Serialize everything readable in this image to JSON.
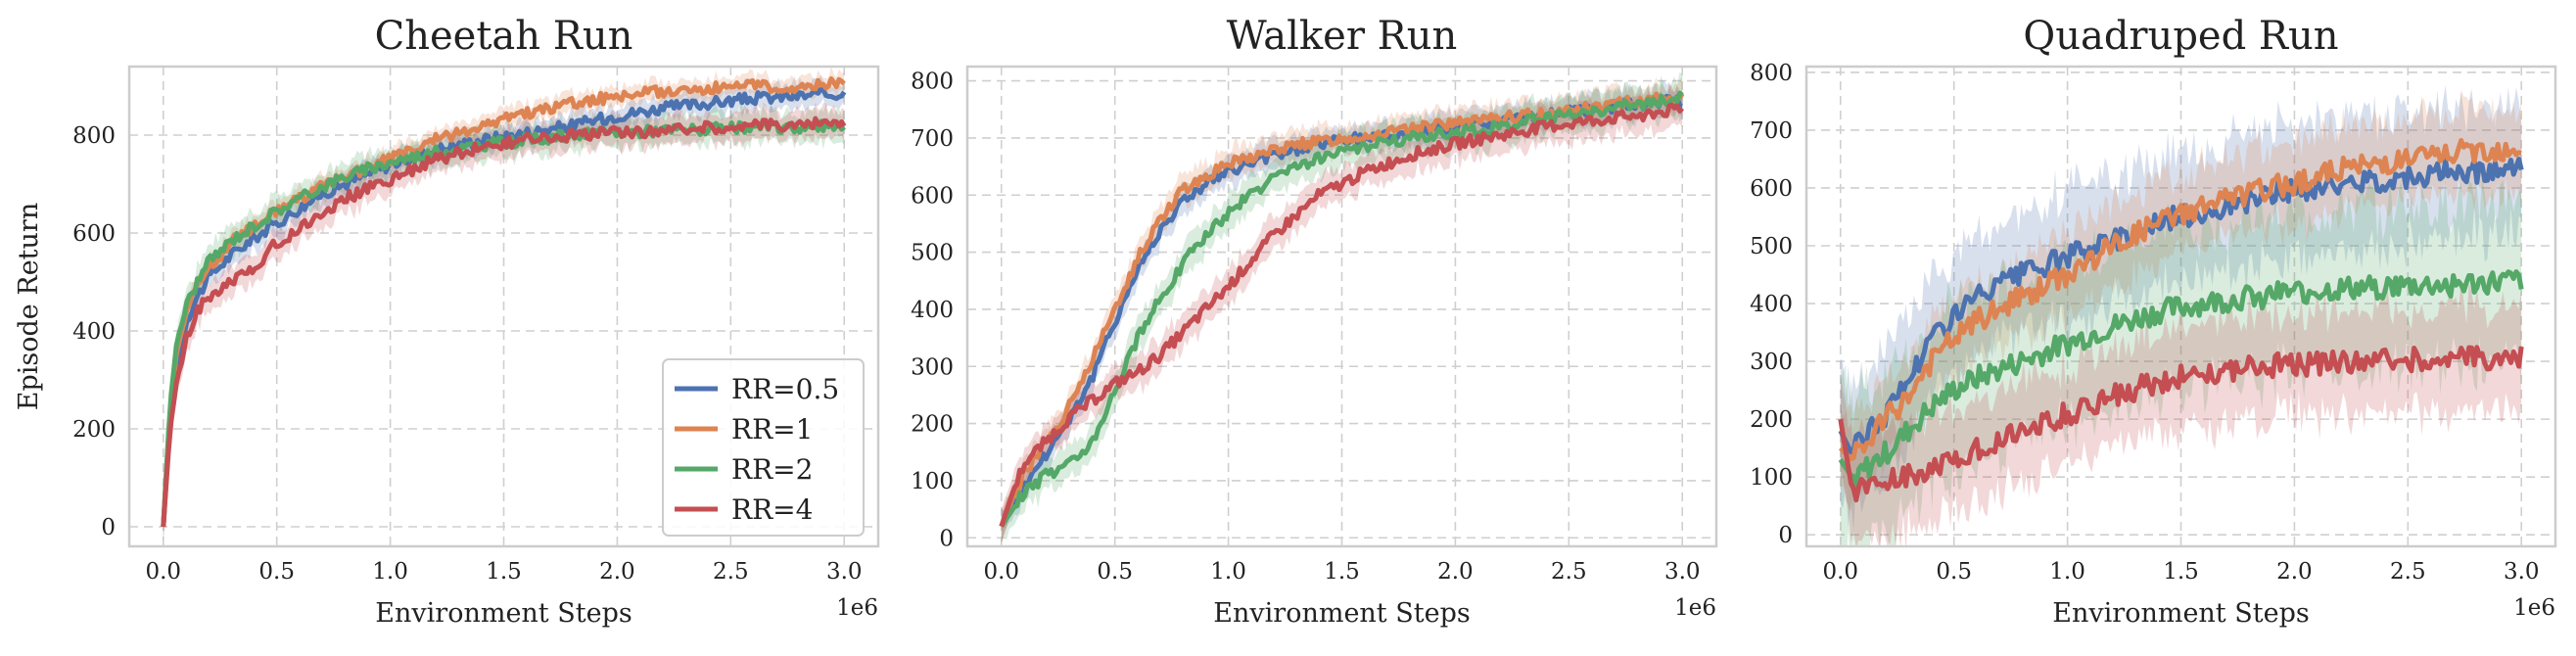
{
  "chart_data": [
    {
      "type": "line",
      "title": "Cheetah Run",
      "xlabel": "Environment Steps",
      "ylabel": "Episode Return",
      "x_multiplier": "1e6",
      "xlim": [
        -0.15,
        3.15
      ],
      "ylim": [
        -40,
        940
      ],
      "xticks": [
        "0.0",
        "0.5",
        "1.0",
        "1.5",
        "2.0",
        "2.5",
        "3.0"
      ],
      "yticks": [
        "0",
        "200",
        "400",
        "600",
        "800"
      ],
      "grid": true,
      "legend": "lower-right",
      "series": [
        {
          "name": "RR=0.5",
          "color": "#4c72b0",
          "x": [
            0,
            0.03,
            0.06,
            0.1,
            0.15,
            0.2,
            0.3,
            0.4,
            0.5,
            0.6,
            0.7,
            0.8,
            0.9,
            1.0,
            1.2,
            1.4,
            1.6,
            1.8,
            2.0,
            2.2,
            2.4,
            2.6,
            2.8,
            3.0
          ],
          "y": [
            0,
            220,
            330,
            420,
            470,
            510,
            555,
            590,
            620,
            650,
            680,
            700,
            720,
            740,
            770,
            790,
            805,
            820,
            840,
            855,
            865,
            875,
            880,
            885
          ],
          "band": 25
        },
        {
          "name": "RR=1",
          "color": "#dd8452",
          "x": [
            0,
            0.03,
            0.06,
            0.1,
            0.15,
            0.2,
            0.3,
            0.4,
            0.5,
            0.6,
            0.7,
            0.8,
            0.9,
            1.0,
            1.2,
            1.4,
            1.6,
            1.8,
            2.0,
            2.2,
            2.4,
            2.6,
            2.8,
            3.0
          ],
          "y": [
            0,
            240,
            360,
            440,
            490,
            530,
            580,
            615,
            645,
            670,
            695,
            715,
            735,
            750,
            790,
            820,
            845,
            865,
            880,
            890,
            895,
            900,
            900,
            905
          ],
          "band": 20
        },
        {
          "name": "RR=2",
          "color": "#55a868",
          "x": [
            0,
            0.03,
            0.06,
            0.1,
            0.15,
            0.2,
            0.3,
            0.4,
            0.5,
            0.6,
            0.7,
            0.8,
            0.9,
            1.0,
            1.2,
            1.4,
            1.6,
            1.8,
            2.0,
            2.2,
            2.4,
            2.6,
            2.8,
            3.0
          ],
          "y": [
            0,
            250,
            380,
            450,
            500,
            540,
            585,
            615,
            645,
            670,
            695,
            715,
            730,
            745,
            765,
            780,
            790,
            800,
            805,
            810,
            812,
            815,
            815,
            820
          ],
          "band": 30
        },
        {
          "name": "RR=4",
          "color": "#c44e52",
          "x": [
            0,
            0.03,
            0.06,
            0.1,
            0.15,
            0.2,
            0.3,
            0.4,
            0.5,
            0.6,
            0.7,
            0.8,
            0.9,
            1.0,
            1.2,
            1.4,
            1.6,
            1.8,
            2.0,
            2.2,
            2.4,
            2.6,
            2.8,
            3.0
          ],
          "y": [
            0,
            200,
            300,
            380,
            440,
            470,
            500,
            530,
            580,
            610,
            640,
            670,
            690,
            710,
            750,
            775,
            790,
            800,
            805,
            810,
            815,
            820,
            822,
            825
          ],
          "band": 30
        }
      ]
    },
    {
      "type": "line",
      "title": "Walker Run",
      "xlabel": "Environment Steps",
      "ylabel": "",
      "x_multiplier": "1e6",
      "xlim": [
        -0.15,
        3.15
      ],
      "ylim": [
        -15,
        825
      ],
      "xticks": [
        "0.0",
        "0.5",
        "1.0",
        "1.5",
        "2.0",
        "2.5",
        "3.0"
      ],
      "yticks": [
        "0",
        "100",
        "200",
        "300",
        "400",
        "500",
        "600",
        "700",
        "800"
      ],
      "grid": true,
      "legend": "none",
      "series": [
        {
          "name": "RR=0.5",
          "color": "#4c72b0",
          "x": [
            0,
            0.05,
            0.1,
            0.2,
            0.3,
            0.4,
            0.5,
            0.6,
            0.7,
            0.8,
            0.9,
            1.0,
            1.2,
            1.4,
            1.6,
            1.8,
            2.0,
            2.2,
            2.4,
            2.6,
            2.8,
            3.0
          ],
          "y": [
            20,
            60,
            90,
            150,
            210,
            280,
            380,
            470,
            540,
            590,
            620,
            640,
            670,
            690,
            700,
            710,
            720,
            730,
            740,
            750,
            760,
            765
          ],
          "band": 25
        },
        {
          "name": "RR=1",
          "color": "#dd8452",
          "x": [
            0,
            0.05,
            0.1,
            0.2,
            0.3,
            0.4,
            0.5,
            0.6,
            0.7,
            0.8,
            0.9,
            1.0,
            1.2,
            1.4,
            1.6,
            1.8,
            2.0,
            2.2,
            2.4,
            2.6,
            2.8,
            3.0
          ],
          "y": [
            20,
            70,
            110,
            170,
            230,
            310,
            400,
            490,
            560,
            610,
            635,
            655,
            680,
            695,
            705,
            715,
            725,
            735,
            745,
            755,
            765,
            770
          ],
          "band": 25
        },
        {
          "name": "RR=2",
          "color": "#55a868",
          "x": [
            0,
            0.05,
            0.1,
            0.2,
            0.3,
            0.4,
            0.5,
            0.6,
            0.7,
            0.8,
            0.9,
            1.0,
            1.2,
            1.4,
            1.6,
            1.8,
            2.0,
            2.2,
            2.4,
            2.6,
            2.8,
            3.0
          ],
          "y": [
            20,
            50,
            80,
            110,
            130,
            170,
            260,
            350,
            420,
            480,
            530,
            570,
            630,
            665,
            685,
            700,
            710,
            720,
            735,
            745,
            760,
            770
          ],
          "band": 30
        },
        {
          "name": "RR=4",
          "color": "#c44e52",
          "x": [
            0,
            0.05,
            0.1,
            0.2,
            0.3,
            0.4,
            0.5,
            0.6,
            0.7,
            0.8,
            0.9,
            1.0,
            1.2,
            1.4,
            1.6,
            1.8,
            2.0,
            2.2,
            2.4,
            2.6,
            2.8,
            3.0
          ],
          "y": [
            20,
            80,
            130,
            170,
            210,
            240,
            270,
            290,
            320,
            360,
            400,
            440,
            530,
            600,
            640,
            670,
            690,
            705,
            720,
            730,
            740,
            750
          ],
          "band": 30
        }
      ]
    },
    {
      "type": "line",
      "title": "Quadruped Run",
      "xlabel": "Environment Steps",
      "ylabel": "",
      "x_multiplier": "1e6",
      "xlim": [
        -0.15,
        3.15
      ],
      "ylim": [
        -20,
        810
      ],
      "xticks": [
        "0.0",
        "0.5",
        "1.0",
        "1.5",
        "2.0",
        "2.5",
        "3.0"
      ],
      "yticks": [
        "0",
        "100",
        "200",
        "300",
        "400",
        "500",
        "600",
        "700",
        "800"
      ],
      "grid": true,
      "legend": "none",
      "series": [
        {
          "name": "RR=0.5",
          "color": "#4c72b0",
          "x": [
            0,
            0.05,
            0.1,
            0.2,
            0.3,
            0.4,
            0.5,
            0.6,
            0.8,
            1.0,
            1.2,
            1.4,
            1.6,
            1.8,
            2.0,
            2.2,
            2.4,
            2.6,
            2.8,
            3.0
          ],
          "y": [
            180,
            140,
            170,
            210,
            270,
            340,
            380,
            410,
            450,
            480,
            510,
            540,
            560,
            580,
            595,
            605,
            615,
            625,
            630,
            635
          ],
          "band": 110
        },
        {
          "name": "RR=1",
          "color": "#dd8452",
          "x": [
            0,
            0.05,
            0.1,
            0.2,
            0.3,
            0.4,
            0.5,
            0.6,
            0.8,
            1.0,
            1.2,
            1.4,
            1.6,
            1.8,
            2.0,
            2.2,
            2.4,
            2.6,
            2.8,
            3.0
          ],
          "y": [
            150,
            130,
            150,
            200,
            240,
            300,
            340,
            370,
            410,
            450,
            500,
            540,
            570,
            590,
            610,
            630,
            645,
            655,
            665,
            670
          ],
          "band": 70
        },
        {
          "name": "RR=2",
          "color": "#55a868",
          "x": [
            0,
            0.05,
            0.1,
            0.2,
            0.3,
            0.4,
            0.5,
            0.6,
            0.8,
            1.0,
            1.2,
            1.4,
            1.6,
            1.8,
            2.0,
            2.2,
            2.4,
            2.6,
            2.8,
            3.0
          ],
          "y": [
            130,
            100,
            110,
            140,
            180,
            220,
            250,
            270,
            300,
            330,
            360,
            385,
            400,
            410,
            420,
            425,
            430,
            432,
            435,
            440
          ],
          "band": 140
        },
        {
          "name": "RR=4",
          "color": "#c44e52",
          "x": [
            0,
            0.05,
            0.1,
            0.2,
            0.3,
            0.4,
            0.5,
            0.6,
            0.8,
            1.0,
            1.2,
            1.4,
            1.6,
            1.8,
            2.0,
            2.2,
            2.4,
            2.6,
            2.8,
            3.0
          ],
          "y": [
            200,
            80,
            80,
            90,
            100,
            110,
            130,
            150,
            180,
            210,
            240,
            265,
            280,
            290,
            295,
            300,
            302,
            305,
            305,
            305
          ],
          "band": 90
        }
      ]
    }
  ]
}
